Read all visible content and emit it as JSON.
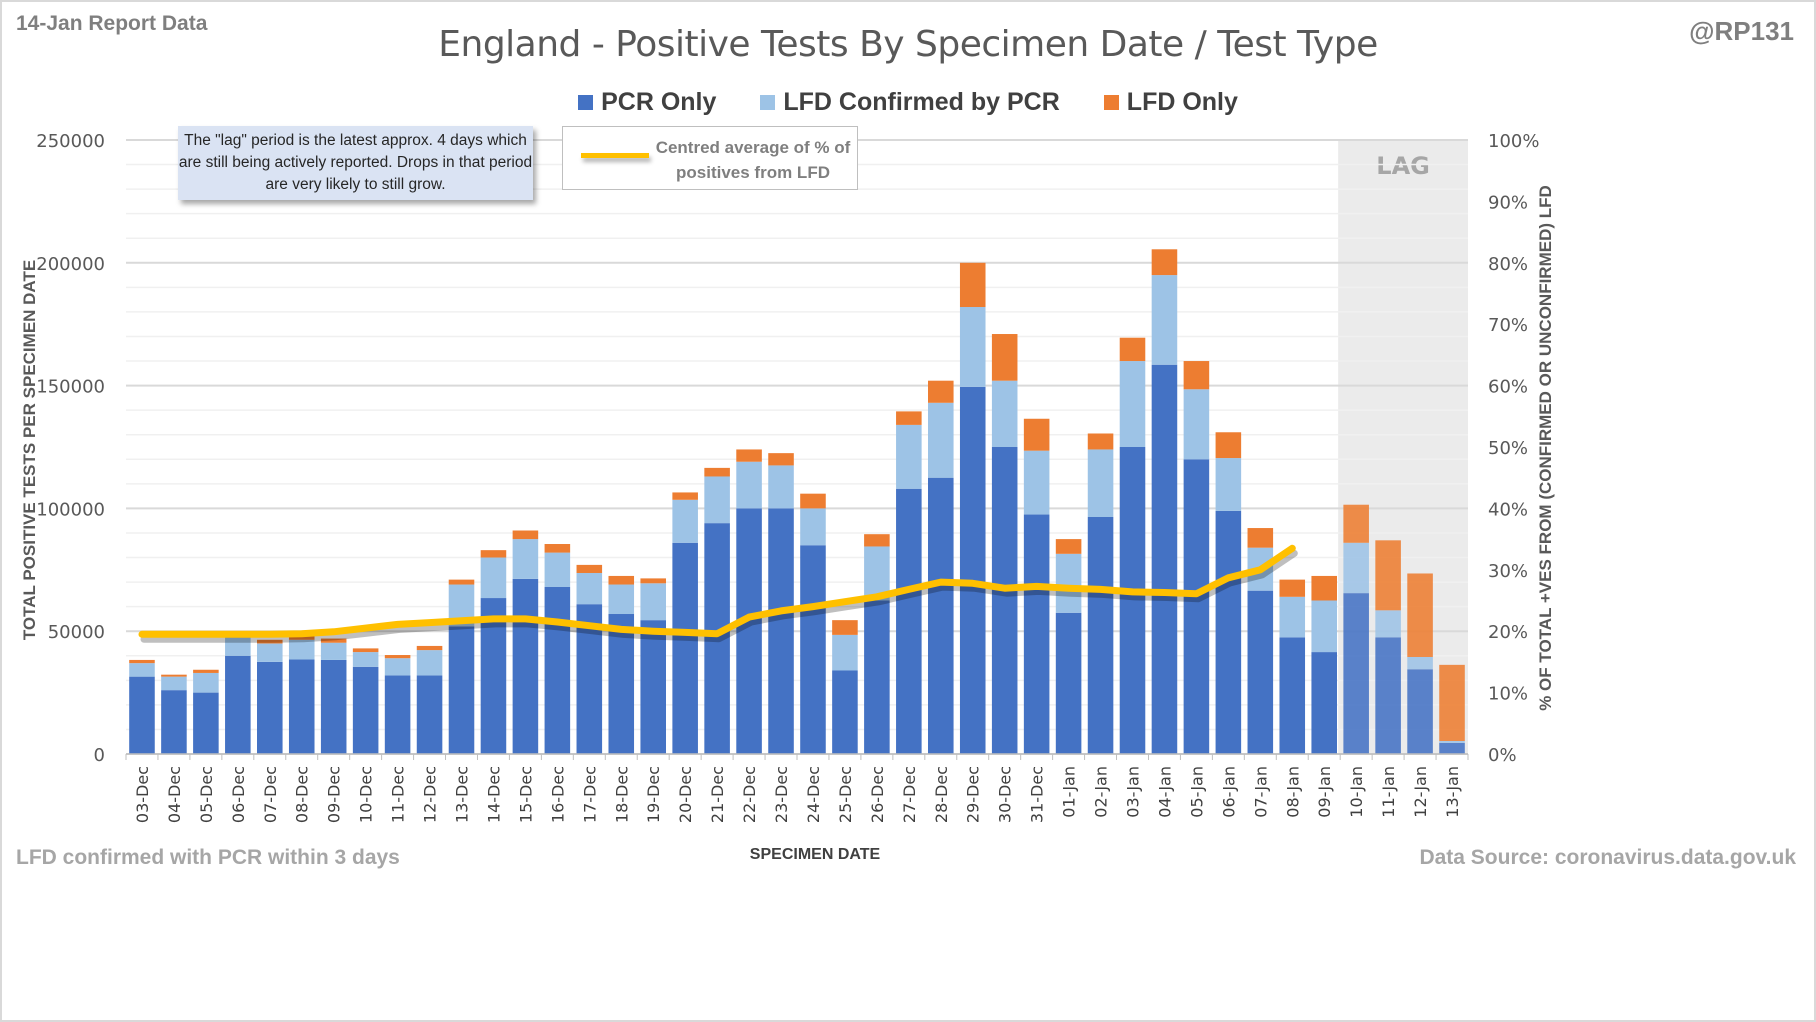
{
  "header": {
    "report_label": "14-Jan Report Data",
    "handle": "@RP131"
  },
  "annotations": {
    "lag_note": "The \"lag\" period is the latest approx. 4 days which are still being actively reported. Drops in that period are very likely to still grow.",
    "lag_label": "LAG",
    "line_legend": "Centred average of % of positives from LFD",
    "footnote_left": "LFD confirmed with PCR within 3 days",
    "footnote_right": "Data Source: coronavirus.data.gov.uk"
  },
  "colors": {
    "pcr": "#4472c4",
    "lfd_confirmed": "#9dc3e6",
    "lfd_only": "#ed7d31",
    "line": "#ffc000",
    "lag_shade": "#ebebeb"
  },
  "chart_data": {
    "type": "bar",
    "stacked": true,
    "title": "England - Positive Tests By Specimen Date / Test Type",
    "xlabel": "SPECIMEN DATE",
    "ylabel": "TOTAL POSITIVE TESTS PER SPECIMEN DATE",
    "y2label": "% OF TOTAL +VES FROM (CONFIRMED OR UNCONFIRMED) LFD",
    "ylim": [
      0,
      250000
    ],
    "y_ticks": [
      0,
      50000,
      100000,
      150000,
      200000,
      250000
    ],
    "y2lim": [
      0,
      100
    ],
    "y2_ticks": [
      "0%",
      "10%",
      "20%",
      "30%",
      "40%",
      "50%",
      "60%",
      "70%",
      "80%",
      "90%",
      "100%"
    ],
    "grid": true,
    "legend_position": "top-center",
    "lag_categories": [
      "10-Jan",
      "11-Jan",
      "12-Jan",
      "13-Jan"
    ],
    "categories": [
      "03-Dec",
      "04-Dec",
      "05-Dec",
      "06-Dec",
      "07-Dec",
      "08-Dec",
      "09-Dec",
      "10-Dec",
      "11-Dec",
      "12-Dec",
      "13-Dec",
      "14-Dec",
      "15-Dec",
      "16-Dec",
      "17-Dec",
      "18-Dec",
      "19-Dec",
      "20-Dec",
      "21-Dec",
      "22-Dec",
      "23-Dec",
      "24-Dec",
      "25-Dec",
      "26-Dec",
      "27-Dec",
      "28-Dec",
      "29-Dec",
      "30-Dec",
      "31-Dec",
      "01-Jan",
      "02-Jan",
      "03-Jan",
      "04-Jan",
      "05-Jan",
      "06-Jan",
      "07-Jan",
      "08-Jan",
      "09-Jan",
      "10-Jan",
      "11-Jan",
      "12-Jan",
      "13-Jan"
    ],
    "series": [
      {
        "name": "PCR Only",
        "values": [
          31500,
          26000,
          25000,
          40000,
          37500,
          38500,
          38300,
          35500,
          32000,
          32000,
          52000,
          63500,
          71300,
          68000,
          61000,
          57000,
          54500,
          86000,
          94000,
          100000,
          100000,
          85000,
          34000,
          62500,
          108000,
          112500,
          149500,
          125000,
          97500,
          57500,
          96500,
          125000,
          158500,
          120000,
          99000,
          66500,
          47500,
          41500,
          65500,
          47500,
          34500,
          4500
        ]
      },
      {
        "name": "LFD Confirmed by PCR",
        "values": [
          5500,
          5500,
          8000,
          7500,
          7500,
          8000,
          7000,
          6000,
          7000,
          10300,
          17000,
          16500,
          16200,
          14000,
          12700,
          12000,
          15000,
          17500,
          19000,
          19000,
          17500,
          15000,
          14500,
          22000,
          26000,
          30500,
          32500,
          27000,
          26000,
          24000,
          27500,
          35000,
          36500,
          28500,
          21500,
          17500,
          16500,
          21000,
          20500,
          11000,
          5000,
          800
        ]
      },
      {
        "name": "LFD Only",
        "values": [
          1300,
          800,
          1300,
          800,
          1500,
          1500,
          1700,
          1500,
          1300,
          1700,
          2000,
          3000,
          3500,
          3500,
          3300,
          3500,
          2000,
          3000,
          3500,
          5000,
          5000,
          6000,
          6000,
          5000,
          5500,
          9000,
          18000,
          19000,
          13000,
          6000,
          6500,
          9500,
          10500,
          11500,
          10500,
          8000,
          7000,
          10000,
          15500,
          28500,
          34000,
          31000
        ]
      }
    ],
    "line_series": {
      "name": "Centred average of % of positives from LFD",
      "axis": "right",
      "unit": "%",
      "values": [
        19.5,
        19.5,
        19.5,
        19.5,
        19.5,
        19.6,
        19.9,
        20.5,
        21.1,
        21.4,
        21.7,
        22.0,
        22.0,
        21.5,
        20.9,
        20.3,
        20.0,
        19.8,
        19.6,
        22.3,
        23.3,
        24.0,
        24.8,
        25.6,
        26.8,
        28.0,
        27.8,
        27.0,
        27.3,
        27.0,
        26.8,
        26.4,
        26.3,
        26.1,
        28.7,
        30.0,
        33.5
      ]
    }
  }
}
